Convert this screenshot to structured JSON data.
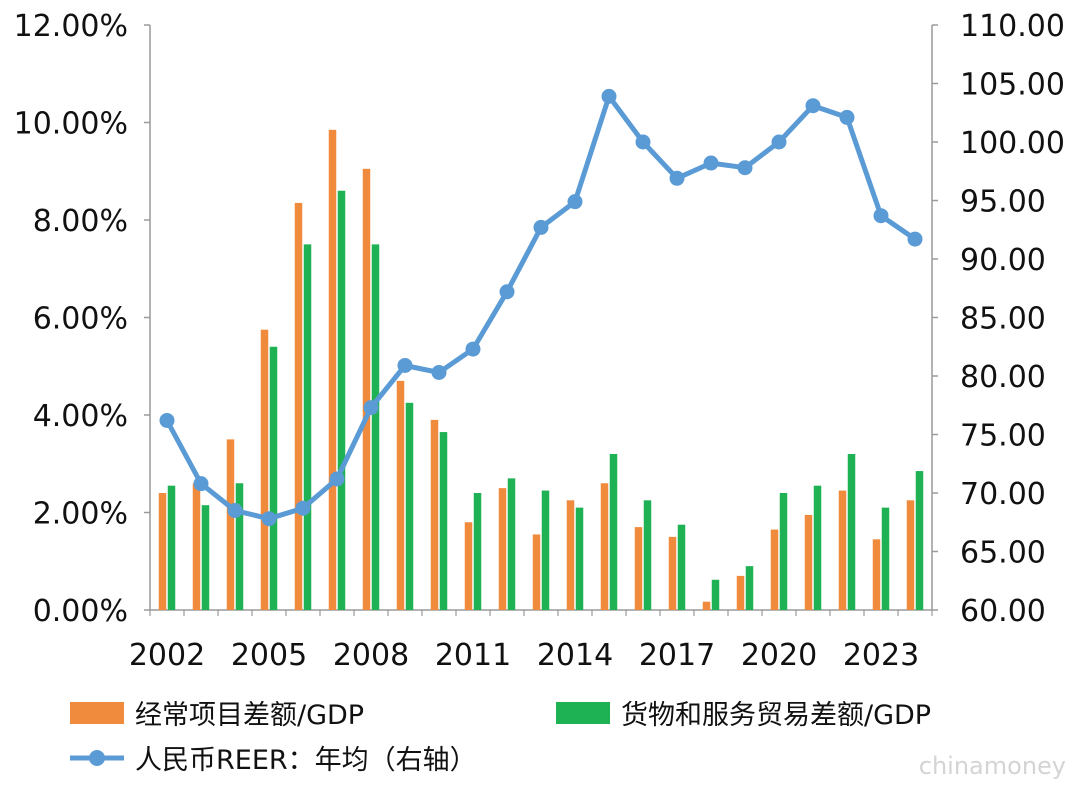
{
  "chart_data": {
    "type": "bar",
    "title": "",
    "years": [
      2002,
      2003,
      2004,
      2005,
      2006,
      2007,
      2008,
      2009,
      2010,
      2011,
      2012,
      2013,
      2014,
      2015,
      2016,
      2017,
      2018,
      2019,
      2020,
      2021,
      2022,
      2023,
      2024
    ],
    "x_tick_labels": [
      "2002",
      "2005",
      "2008",
      "2011",
      "2014",
      "2017",
      "2020",
      "2023"
    ],
    "left_axis": {
      "ylim": [
        0,
        12
      ],
      "tick_labels": [
        "0.00%",
        "2.00%",
        "4.00%",
        "6.00%",
        "8.00%",
        "10.00%",
        "12.00%"
      ]
    },
    "right_axis": {
      "ylim": [
        60,
        110
      ],
      "tick_labels": [
        "60.00",
        "65.00",
        "70.00",
        "75.00",
        "80.00",
        "85.00",
        "90.00",
        "95.00",
        "100.00",
        "105.00",
        "110.00"
      ]
    },
    "series": [
      {
        "name": "经常项目差额/GDP",
        "type": "bar",
        "axis": "left",
        "color": "#f08a3c",
        "values": [
          2.4,
          2.6,
          3.5,
          5.75,
          8.35,
          9.85,
          9.05,
          4.7,
          3.9,
          1.8,
          2.5,
          1.55,
          2.25,
          2.6,
          1.7,
          1.5,
          0.17,
          0.7,
          1.65,
          1.95,
          2.45,
          1.45,
          2.25
        ]
      },
      {
        "name": "货物和服务贸易差额/GDP",
        "type": "bar",
        "axis": "left",
        "color": "#1fb254",
        "values": [
          2.55,
          2.15,
          2.6,
          5.4,
          7.5,
          8.6,
          7.5,
          4.25,
          3.65,
          2.4,
          2.7,
          2.45,
          2.1,
          3.2,
          2.25,
          1.75,
          0.62,
          0.9,
          2.4,
          2.55,
          3.2,
          2.1,
          2.85
        ]
      },
      {
        "name": "人民币REER：年均（右轴）",
        "type": "line",
        "axis": "right",
        "color": "#5b9bd5",
        "values": [
          76.2,
          70.8,
          68.5,
          67.8,
          68.7,
          71.2,
          77.3,
          80.9,
          80.3,
          82.3,
          87.2,
          92.7,
          94.9,
          103.9,
          100.0,
          96.9,
          98.2,
          97.8,
          100.0,
          103.1,
          102.1,
          93.7,
          91.7
        ]
      }
    ],
    "legend": {
      "items": [
        "经常项目差额/GDP",
        "货物和服务贸易差额/GDP",
        "人民币REER：年均（右轴）"
      ],
      "placement": "bottom"
    },
    "grid": false
  },
  "watermark": "chinamoney"
}
